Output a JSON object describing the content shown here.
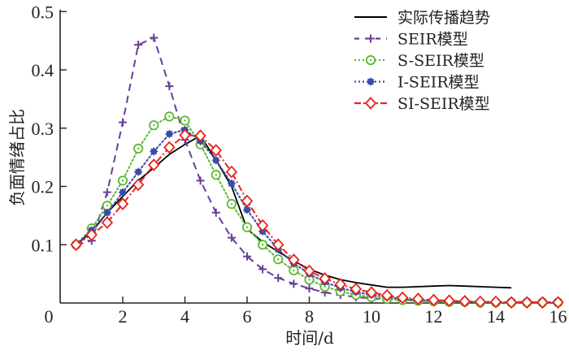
{
  "chart_data": {
    "type": "line",
    "title": "",
    "xlabel": "时间/d",
    "ylabel": "负面情绪占比",
    "xlim": [
      0,
      16
    ],
    "ylim": [
      0,
      0.5
    ],
    "xticks": [
      "0",
      "2",
      "4",
      "6",
      "8",
      "10",
      "12",
      "14",
      "16"
    ],
    "xtick_values": [
      0,
      2,
      4,
      6,
      8,
      10,
      12,
      14,
      16
    ],
    "yticks": [
      "0.1",
      "0.2",
      "0.3",
      "0.4",
      "0.5"
    ],
    "ytick_values": [
      0.1,
      0.2,
      0.3,
      0.4,
      0.5
    ],
    "grid": false,
    "legend_position": "top-right",
    "series": [
      {
        "name": "实际传播趋势",
        "color": "#000000",
        "dash": "solid",
        "marker": "none",
        "x": [
          0.5,
          1,
          1.5,
          2,
          2.5,
          3,
          3.5,
          4,
          4.5,
          5,
          5.5,
          6,
          6.5,
          7,
          7.5,
          8,
          8.5,
          9,
          9.5,
          10,
          10.5,
          11,
          11.5,
          12,
          12.5,
          13,
          13.5,
          14,
          14.5
        ],
        "y": [
          0.1,
          0.122,
          0.155,
          0.183,
          0.21,
          0.232,
          0.255,
          0.272,
          0.287,
          0.245,
          0.2,
          0.127,
          0.105,
          0.088,
          0.072,
          0.058,
          0.048,
          0.04,
          0.035,
          0.031,
          0.027,
          0.027,
          0.028,
          0.029,
          0.03,
          0.029,
          0.028,
          0.027,
          0.026
        ]
      },
      {
        "name": "SEIR模型",
        "color": "#6a3d9a",
        "dash": "dashed",
        "marker": "plus",
        "x": [
          0.5,
          1,
          1.5,
          2,
          2.5,
          3,
          3.5,
          4,
          4.5,
          5,
          5.5,
          6,
          6.5,
          7,
          7.5,
          8,
          8.5,
          9,
          9.5,
          10,
          10.5,
          11,
          11.5,
          12,
          12.5,
          13,
          13.5,
          14,
          14.5,
          15,
          15.5,
          16
        ],
        "y": [
          0.1,
          0.107,
          0.19,
          0.31,
          0.443,
          0.455,
          0.372,
          0.28,
          0.21,
          0.155,
          0.112,
          0.08,
          0.058,
          0.043,
          0.033,
          0.025,
          0.018,
          0.014,
          0.01,
          0.008,
          0.006,
          0.005,
          0.004,
          0.003,
          0.003,
          0.002,
          0.002,
          0.002,
          0.002,
          0.002,
          0.001,
          0.001
        ]
      },
      {
        "name": "S-SEIR模型",
        "color": "#5cb82e",
        "dash": "dotted",
        "marker": "circle",
        "x": [
          0.5,
          1,
          1.5,
          2,
          2.5,
          3,
          3.5,
          4,
          4.5,
          5,
          5.5,
          6,
          6.5,
          7,
          7.5,
          8,
          8.5,
          9,
          9.5,
          10,
          10.5,
          11,
          11.5,
          12,
          12.5,
          13,
          13.5,
          14,
          14.5,
          15,
          15.5,
          16
        ],
        "y": [
          0.1,
          0.128,
          0.167,
          0.21,
          0.265,
          0.305,
          0.32,
          0.313,
          0.272,
          0.22,
          0.17,
          0.13,
          0.1,
          0.075,
          0.056,
          0.04,
          0.028,
          0.02,
          0.014,
          0.01,
          0.007,
          0.005,
          0.004,
          0.003,
          0.002,
          0.002,
          0.001,
          0.001,
          0.001,
          0.001,
          0.001,
          0.001
        ]
      },
      {
        "name": "I-SEIR模型",
        "color": "#3b4ba8",
        "dash": "dotted",
        "marker": "star",
        "x": [
          0.5,
          1,
          1.5,
          2,
          2.5,
          3,
          3.5,
          4,
          4.5,
          5,
          5.5,
          6,
          6.5,
          7,
          7.5,
          8,
          8.5,
          9,
          9.5,
          10,
          10.5,
          11,
          11.5,
          12,
          12.5,
          13,
          13.5,
          14,
          14.5,
          15,
          15.5,
          16
        ],
        "y": [
          0.1,
          0.125,
          0.155,
          0.19,
          0.225,
          0.26,
          0.29,
          0.297,
          0.278,
          0.245,
          0.205,
          0.16,
          0.123,
          0.092,
          0.068,
          0.05,
          0.036,
          0.026,
          0.019,
          0.014,
          0.01,
          0.007,
          0.005,
          0.004,
          0.003,
          0.002,
          0.002,
          0.001,
          0.001,
          0.001,
          0.001,
          0.001
        ]
      },
      {
        "name": "SI-SEIR模型",
        "color": "#e8221b",
        "dash": "dashdot",
        "marker": "diamond",
        "x": [
          0.5,
          1,
          1.5,
          2,
          2.5,
          3,
          3.5,
          4,
          4.5,
          5,
          5.5,
          6,
          6.5,
          7,
          7.5,
          8,
          8.5,
          9,
          9.5,
          10,
          10.5,
          11,
          11.5,
          12,
          12.5,
          13,
          13.5,
          14,
          14.5,
          15,
          15.5,
          16
        ],
        "y": [
          0.1,
          0.117,
          0.138,
          0.17,
          0.203,
          0.237,
          0.267,
          0.288,
          0.287,
          0.262,
          0.225,
          0.175,
          0.133,
          0.1,
          0.074,
          0.055,
          0.042,
          0.032,
          0.024,
          0.018,
          0.013,
          0.009,
          0.007,
          0.005,
          0.004,
          0.003,
          0.002,
          0.002,
          0.001,
          0.001,
          0.001,
          0.001
        ]
      }
    ]
  }
}
